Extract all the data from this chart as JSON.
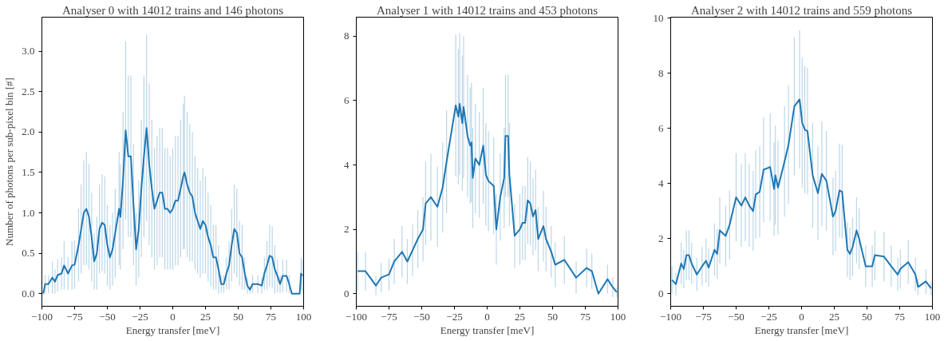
{
  "chart_data": [
    {
      "type": "line",
      "title": "Analyser 0 with 14012 trains and 146 photons",
      "xlabel": "Energy transfer [meV]",
      "ylabel": "Number of photons per sub-pixel bin [#]",
      "color": "#1f77b4",
      "x": [
        -99,
        -97.5,
        -95,
        -92,
        -90,
        -88,
        -85,
        -83,
        -80,
        -77,
        -75,
        -72,
        -70,
        -68,
        -66,
        -64,
        -62,
        -60,
        -58,
        -56,
        -54,
        -52,
        -50,
        -48,
        -46,
        -44,
        -41,
        -40,
        -38,
        -36,
        -34,
        -32,
        -30,
        -28,
        -26,
        -24,
        -22,
        -20,
        -18,
        -16,
        -14,
        -12,
        -10,
        -8,
        -6,
        -4,
        -2,
        0,
        2,
        4,
        6,
        8,
        9,
        11,
        13,
        15,
        17,
        19,
        21,
        23,
        25,
        27,
        29,
        31,
        33,
        35,
        37,
        39,
        41,
        43,
        45,
        47,
        49,
        51,
        53,
        55,
        57,
        59,
        61,
        65,
        68,
        70,
        72,
        74,
        76,
        78,
        80,
        82,
        84,
        87,
        89,
        91,
        95,
        97,
        98,
        99
      ],
      "values": [
        0.0,
        0.12,
        0.12,
        0.2,
        0.15,
        0.23,
        0.25,
        0.35,
        0.25,
        0.35,
        0.36,
        0.6,
        0.8,
        1.0,
        1.05,
        0.95,
        0.7,
        0.4,
        0.5,
        0.8,
        0.88,
        0.85,
        0.6,
        0.45,
        0.55,
        0.75,
        1.05,
        0.95,
        1.4,
        2.02,
        1.7,
        1.7,
        1.1,
        0.55,
        0.8,
        1.3,
        1.7,
        2.05,
        1.6,
        1.3,
        1.05,
        1.15,
        1.25,
        1.25,
        1.05,
        1.05,
        1.0,
        1.05,
        1.15,
        1.15,
        1.3,
        1.45,
        1.5,
        1.35,
        1.25,
        1.2,
        1.0,
        0.9,
        0.8,
        0.9,
        0.85,
        0.7,
        0.6,
        0.45,
        0.45,
        0.3,
        0.12,
        0.12,
        0.25,
        0.35,
        0.6,
        0.8,
        0.75,
        0.5,
        0.45,
        0.25,
        0.1,
        0.05,
        0.12,
        0.12,
        0.1,
        0.25,
        0.35,
        0.47,
        0.45,
        0.3,
        0.22,
        0.12,
        0.22,
        0.22,
        0.12,
        0.0,
        0.0,
        0.0,
        0.25,
        0.22
      ],
      "errors": [
        0.0,
        0.11,
        0.11,
        0.2,
        0.15,
        0.2,
        0.2,
        0.3,
        0.2,
        0.3,
        0.3,
        0.45,
        0.55,
        0.65,
        0.7,
        0.65,
        0.55,
        0.35,
        0.45,
        0.55,
        0.6,
        0.6,
        0.5,
        0.4,
        0.45,
        0.55,
        0.7,
        0.65,
        0.85,
        1.1,
        1.0,
        1.0,
        0.75,
        0.45,
        0.6,
        0.85,
        1.0,
        1.15,
        1.0,
        0.85,
        0.75,
        0.8,
        0.8,
        0.8,
        0.75,
        0.75,
        0.7,
        0.75,
        0.8,
        0.8,
        0.85,
        0.9,
        0.95,
        0.9,
        0.85,
        0.8,
        0.7,
        0.65,
        0.6,
        0.65,
        0.6,
        0.55,
        0.5,
        0.4,
        0.4,
        0.3,
        0.11,
        0.11,
        0.2,
        0.3,
        0.45,
        0.55,
        0.55,
        0.4,
        0.4,
        0.2,
        0.1,
        0.05,
        0.11,
        0.11,
        0.1,
        0.2,
        0.3,
        0.38,
        0.38,
        0.3,
        0.2,
        0.11,
        0.2,
        0.2,
        0.11,
        0.0,
        0.0,
        0.0,
        0.2,
        0.2
      ],
      "xlim": [
        -100,
        100
      ],
      "ylim": [
        -0.155,
        3.42
      ],
      "xticks": [
        {
          "value": -100,
          "label": "−100"
        },
        {
          "value": -75,
          "label": "−75"
        },
        {
          "value": -50,
          "label": "−50"
        },
        {
          "value": -25,
          "label": "−25"
        },
        0,
        25,
        50,
        75,
        100
      ],
      "yticks": [
        {
          "value": 0,
          "label": "0.0"
        },
        0.5,
        {
          "value": 1,
          "label": "1.0"
        },
        1.5,
        {
          "value": 2,
          "label": "2.0"
        },
        2.5,
        {
          "value": 3,
          "label": "3.0"
        }
      ]
    },
    {
      "type": "line",
      "title": "Analyser 1 with 14012 trains and 453 photons",
      "xlabel": "Energy transfer [meV]",
      "color": "#1f77b4",
      "x": [
        -99,
        -93,
        -85,
        -81,
        -75,
        -71,
        -65,
        -61,
        -57,
        -53,
        -49,
        -47,
        -43,
        -38,
        -34,
        -31,
        -24,
        -22,
        -21,
        -19,
        -18,
        -15,
        -13,
        -12,
        -11,
        -9,
        -6,
        -3,
        -1,
        1,
        5,
        7,
        10,
        13,
        14,
        16,
        17,
        21,
        25,
        27,
        29,
        31,
        33,
        35,
        37,
        39,
        43,
        45,
        49,
        52,
        59,
        68,
        76,
        80,
        85,
        92,
        96,
        99
      ],
      "values": [
        0.7,
        0.7,
        0.25,
        0.5,
        0.6,
        1.0,
        1.3,
        1.0,
        1.35,
        1.7,
        2.0,
        2.8,
        3.0,
        2.7,
        3.3,
        4.1,
        5.85,
        5.5,
        5.9,
        5.3,
        5.8,
        4.9,
        4.6,
        4.7,
        3.6,
        4.2,
        4.0,
        4.6,
        3.7,
        3.5,
        3.35,
        2.0,
        3.0,
        3.6,
        4.9,
        4.9,
        3.7,
        1.8,
        2.0,
        2.2,
        2.2,
        2.9,
        2.8,
        2.4,
        2.6,
        1.7,
        2.1,
        1.7,
        1.3,
        0.9,
        1.05,
        0.5,
        0.8,
        0.7,
        0.0,
        0.45,
        0.2,
        0.05
      ],
      "errors": [
        0.6,
        0.6,
        0.3,
        0.45,
        0.5,
        0.7,
        0.8,
        0.7,
        0.8,
        0.9,
        1.0,
        1.3,
        1.35,
        1.25,
        1.4,
        1.6,
        2.2,
        2.1,
        2.2,
        2.1,
        2.2,
        1.9,
        1.8,
        1.85,
        1.55,
        1.7,
        1.65,
        1.8,
        1.6,
        1.55,
        1.5,
        1.1,
        1.35,
        1.55,
        1.9,
        1.9,
        1.6,
        1.0,
        1.1,
        1.15,
        1.15,
        1.35,
        1.3,
        1.2,
        1.25,
        1.0,
        1.1,
        1.0,
        0.8,
        0.7,
        0.75,
        0.5,
        0.6,
        0.55,
        0.0,
        0.45,
        0.3,
        0.15
      ],
      "xlim": [
        -100,
        100
      ],
      "ylim": [
        -0.39,
        8.59
      ],
      "xticks": [
        {
          "value": -100,
          "label": "−100"
        },
        {
          "value": -75,
          "label": "−75"
        },
        {
          "value": -50,
          "label": "−50"
        },
        {
          "value": -25,
          "label": "−25"
        },
        0,
        25,
        50,
        75,
        100
      ],
      "yticks": [
        0,
        2,
        4,
        6,
        8
      ]
    },
    {
      "type": "line",
      "title": "Analyser 2 with 14012 trains and 559 photons",
      "xlabel": "Energy transfer [meV]",
      "color": "#1f77b4",
      "x": [
        -99,
        -96,
        -92,
        -90,
        -88,
        -86,
        -84,
        -80,
        -76,
        -73,
        -71,
        -66.5,
        -64.5,
        -62.5,
        -58,
        -55,
        -50,
        -46,
        -43,
        -40,
        -37,
        -35,
        -32,
        -29,
        -24,
        -21,
        -20,
        -18,
        -13,
        -10,
        -5.5,
        -1.5,
        0.5,
        2.5,
        4.5,
        8.5,
        12.5,
        15.5,
        19,
        24,
        26,
        29,
        31,
        35,
        37,
        39,
        42,
        44,
        49,
        54,
        56,
        63,
        68.5,
        73.5,
        75.5,
        81.5,
        87,
        89,
        95,
        99
      ],
      "values": [
        0.5,
        0.35,
        1.1,
        0.9,
        1.4,
        1.4,
        1.1,
        0.7,
        1.0,
        1.2,
        0.95,
        1.6,
        1.45,
        2.3,
        2.1,
        2.5,
        3.5,
        3.2,
        3.5,
        3.2,
        3.0,
        3.6,
        3.7,
        4.5,
        4.6,
        3.8,
        4.3,
        3.85,
        4.8,
        5.4,
        6.8,
        7.05,
        6.2,
        5.95,
        5.9,
        4.3,
        3.65,
        4.35,
        4.1,
        2.8,
        3.0,
        3.75,
        3.7,
        1.6,
        1.45,
        1.7,
        2.3,
        2.0,
        1.0,
        1.0,
        1.4,
        1.35,
        1.0,
        0.7,
        0.9,
        1.15,
        0.7,
        0.25,
        0.45,
        0.2
      ],
      "errors": [
        0.5,
        0.4,
        0.75,
        0.7,
        0.9,
        0.9,
        0.75,
        0.6,
        0.7,
        0.8,
        0.7,
        0.95,
        0.9,
        1.2,
        1.1,
        1.25,
        1.6,
        1.5,
        1.6,
        1.5,
        1.45,
        1.6,
        1.65,
        1.9,
        1.95,
        1.7,
        1.8,
        1.7,
        2.0,
        2.15,
        2.5,
        2.5,
        2.35,
        2.3,
        2.3,
        1.9,
        1.7,
        1.9,
        1.8,
        1.4,
        1.45,
        1.7,
        1.7,
        1.0,
        0.95,
        1.05,
        1.2,
        1.1,
        0.75,
        0.75,
        0.9,
        0.9,
        0.75,
        0.6,
        0.7,
        0.8,
        0.6,
        0.3,
        0.45,
        0.25
      ],
      "xlim": [
        -100,
        100
      ],
      "ylim": [
        -0.45,
        10.03
      ],
      "xticks": [
        {
          "value": -100,
          "label": "−100"
        },
        {
          "value": -75,
          "label": "−75"
        },
        {
          "value": -50,
          "label": "−50"
        },
        {
          "value": -25,
          "label": "−25"
        },
        0,
        25,
        50,
        75,
        100
      ],
      "yticks": [
        0,
        2,
        4,
        6,
        8,
        10
      ]
    }
  ]
}
